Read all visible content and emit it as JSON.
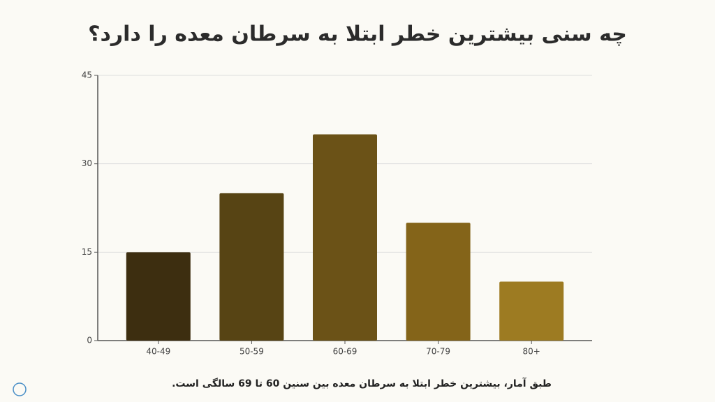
{
  "chart_data": {
    "type": "bar",
    "title": "چه سنی بیشترین خطر ابتلا به سرطان معده را دارد؟",
    "caption": "طبق آمار، بیشترین خطر ابتلا به سرطان معده بین سنین 60 تا 69 سالگی است.",
    "categories": [
      "40-49",
      "50-59",
      "60-69",
      "70-79",
      "80+"
    ],
    "values": [
      15,
      25,
      35,
      20,
      10
    ],
    "colors": [
      "#3d2e10",
      "#574414",
      "#6b5217",
      "#846419",
      "#9d7b22"
    ],
    "ylim": [
      0,
      45
    ],
    "yticks": [
      0,
      15,
      30,
      45
    ],
    "grid": true
  }
}
